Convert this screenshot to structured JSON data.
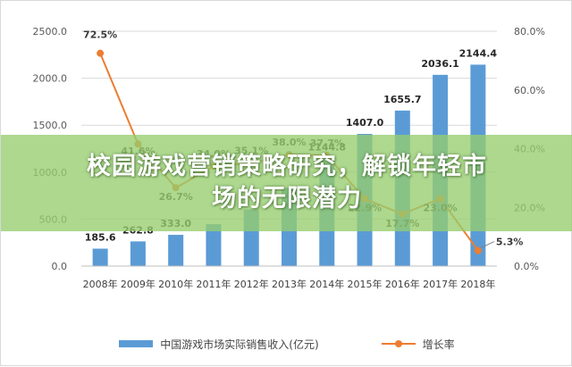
{
  "chart_data": {
    "type": "bar",
    "categories": [
      "2008年",
      "2009年",
      "2010年",
      "2011年",
      "2012年",
      "2013年",
      "2014年",
      "2015年",
      "2016年",
      "2017年",
      "2018年"
    ],
    "series": [
      {
        "name": "中国游戏市场实际销售收入(亿元)",
        "kind": "bar",
        "axis": "left",
        "color": "#5b9bd5",
        "values": [
          185.6,
          262.8,
          333.0,
          446.1,
          602.8,
          831.7,
          1144.8,
          1407.0,
          1655.7,
          2036.1,
          2144.4
        ],
        "labels": [
          "185.6",
          "262.8",
          "333.0",
          "",
          "",
          "",
          "1144.8",
          "1407.0",
          "1655.7",
          "2036.1",
          "2144.4"
        ]
      },
      {
        "name": "增长率",
        "kind": "line",
        "axis": "right",
        "color": "#ed7d31",
        "values": [
          72.5,
          41.6,
          26.7,
          34.0,
          35.1,
          38.0,
          37.7,
          22.9,
          17.7,
          23.0,
          5.3
        ],
        "labels": [
          "72.5%",
          "41.6%",
          "26.7%",
          "34.0%",
          "35.1%",
          "38.0%",
          "37.7%",
          "22.9%",
          "17.7%",
          "23.0%",
          "5.3%"
        ]
      }
    ],
    "y_left": {
      "min": 0,
      "max": 2500,
      "ticks": [
        "0.0",
        "500.0",
        "1000.0",
        "1500.0",
        "2000.0",
        "2500.0"
      ]
    },
    "y_right": {
      "min": 0,
      "max": 80,
      "ticks": [
        "0.0%",
        "20.0%",
        "40.0%",
        "60.0%",
        "80.0%"
      ]
    },
    "grid": true,
    "legend": "bottom"
  },
  "banner": {
    "line1": "校园游戏营销策略研究，解锁年轻市",
    "line2": "场的无限潜力"
  },
  "legend": {
    "bar_label": "中国游戏市场实际销售收入(亿元)",
    "line_label": "增长率"
  }
}
